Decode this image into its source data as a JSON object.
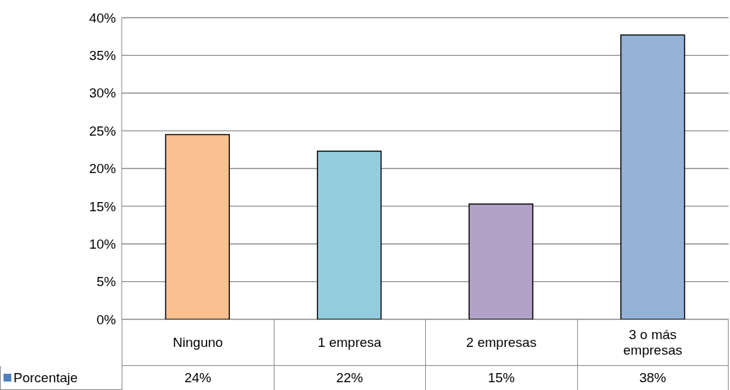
{
  "chart_data": {
    "type": "bar",
    "categories": [
      "Ninguno",
      "1 empresa",
      "2 empresas",
      "3 o más empresas"
    ],
    "series": [
      {
        "name": "Porcentaje",
        "color": "#4f81bd",
        "colors": [
          "#fac090",
          "#93cddd",
          "#b2a2c7",
          "#95b3d7"
        ],
        "values": [
          24.5,
          22.3,
          15.3,
          37.7
        ],
        "value_labels": [
          "24%",
          "22%",
          "15%",
          "38%"
        ]
      }
    ],
    "ylim": [
      0,
      40
    ],
    "yticks": [
      {
        "value": 0,
        "label": "0%"
      },
      {
        "value": 5,
        "label": "5%"
      },
      {
        "value": 10,
        "label": "10%"
      },
      {
        "value": 15,
        "label": "15%"
      },
      {
        "value": 20,
        "label": "20%"
      },
      {
        "value": 25,
        "label": "25%"
      },
      {
        "value": 30,
        "label": "30%"
      },
      {
        "value": 35,
        "label": "35%"
      },
      {
        "value": 40,
        "label": "40%"
      }
    ],
    "grid": "y",
    "legend": "bottom left"
  }
}
